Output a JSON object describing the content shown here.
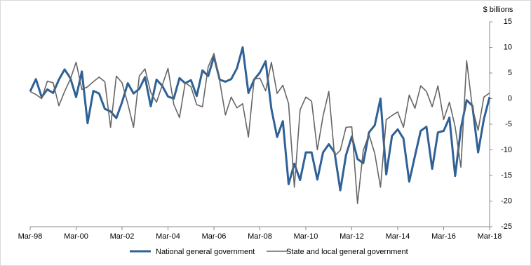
{
  "chart_data": {
    "type": "line",
    "y_label": "$ billions",
    "categories": [
      "Mar-98",
      null,
      null,
      null,
      null,
      null,
      null,
      null,
      "Mar-00",
      null,
      null,
      null,
      null,
      null,
      null,
      null,
      "Mar-02",
      null,
      null,
      null,
      null,
      null,
      null,
      null,
      "Mar-04",
      null,
      null,
      null,
      null,
      null,
      null,
      null,
      "Mar-06",
      null,
      null,
      null,
      null,
      null,
      null,
      null,
      "Mar-08",
      null,
      null,
      null,
      null,
      null,
      null,
      null,
      "Mar-10",
      null,
      null,
      null,
      null,
      null,
      null,
      null,
      "Mar-12",
      null,
      null,
      null,
      null,
      null,
      null,
      null,
      "Mar-14",
      null,
      null,
      null,
      null,
      null,
      null,
      null,
      "Mar-16",
      null,
      null,
      null,
      null,
      null,
      null,
      null,
      "Mar-18"
    ],
    "series": [
      {
        "name": "National general government",
        "color": "#2f6196",
        "values": [
          1.4,
          3.8,
          0.3,
          1.8,
          1.1,
          3.7,
          5.7,
          4.0,
          0.3,
          5.3,
          -4.8,
          1.5,
          1.0,
          -2.0,
          -2.5,
          -3.8,
          -0.7,
          3.0,
          1.0,
          1.9,
          4.2,
          -1.5,
          3.7,
          2.5,
          0.4,
          0.0,
          4.0,
          3.0,
          3.6,
          0.5,
          5.5,
          4.4,
          8.2,
          3.7,
          3.3,
          3.8,
          5.9,
          10.0,
          1.1,
          3.7,
          5.1,
          7.3,
          -2.0,
          -7.5,
          -4.4,
          -16.7,
          -12.7,
          -15.9,
          -10.5,
          -10.5,
          -15.8,
          -10.5,
          -8.9,
          -10.5,
          -17.9,
          -11.0,
          -7.4,
          -11.8,
          -12.6,
          -6.6,
          -5.2,
          0.0,
          -14.8,
          -7.3,
          -6.0,
          -7.8,
          -16.2,
          -11.2,
          -6.3,
          -5.5,
          -13.7,
          -6.6,
          -6.3,
          -3.7,
          -15.1,
          -5.8,
          -0.3,
          -1.4,
          -10.5,
          -4.0,
          0.3
        ]
      },
      {
        "name": "State and local general government",
        "color": "#666666",
        "values": [
          1.4,
          0.8,
          0.0,
          3.4,
          3.1,
          -1.4,
          1.4,
          3.8,
          7.1,
          1.8,
          2.3,
          3.3,
          4.2,
          3.3,
          -5.6,
          4.4,
          3.1,
          -1.0,
          -5.6,
          4.4,
          5.8,
          1.2,
          -0.7,
          2.6,
          5.9,
          -1.1,
          -3.7,
          3.1,
          2.3,
          -1.2,
          -1.6,
          6.2,
          8.8,
          3.4,
          -3.2,
          0.3,
          -1.8,
          -1.0,
          -7.5,
          3.8,
          4.0,
          1.5,
          7.1,
          1.0,
          2.6,
          -1.0,
          -17.3,
          -2.2,
          0.3,
          -0.5,
          -10.0,
          -3.4,
          1.4,
          -11.2,
          -10.1,
          -5.6,
          -5.5,
          -20.5,
          -10.1,
          -7.0,
          -10.7,
          -17.3,
          -4.1,
          -3.3,
          -2.6,
          -5.6,
          0.7,
          -1.9,
          2.5,
          1.4,
          -1.6,
          2.5,
          -4.1,
          -0.7,
          -5.5,
          -13.4,
          7.4,
          -1.8,
          -6.2,
          0.3,
          1.1
        ]
      }
    ],
    "ylim": [
      -25,
      15
    ],
    "yticks": [
      15,
      10,
      5,
      0,
      -5,
      -10,
      -15,
      -20,
      -25
    ],
    "y_axis_side": "right",
    "legend": "bottom"
  }
}
